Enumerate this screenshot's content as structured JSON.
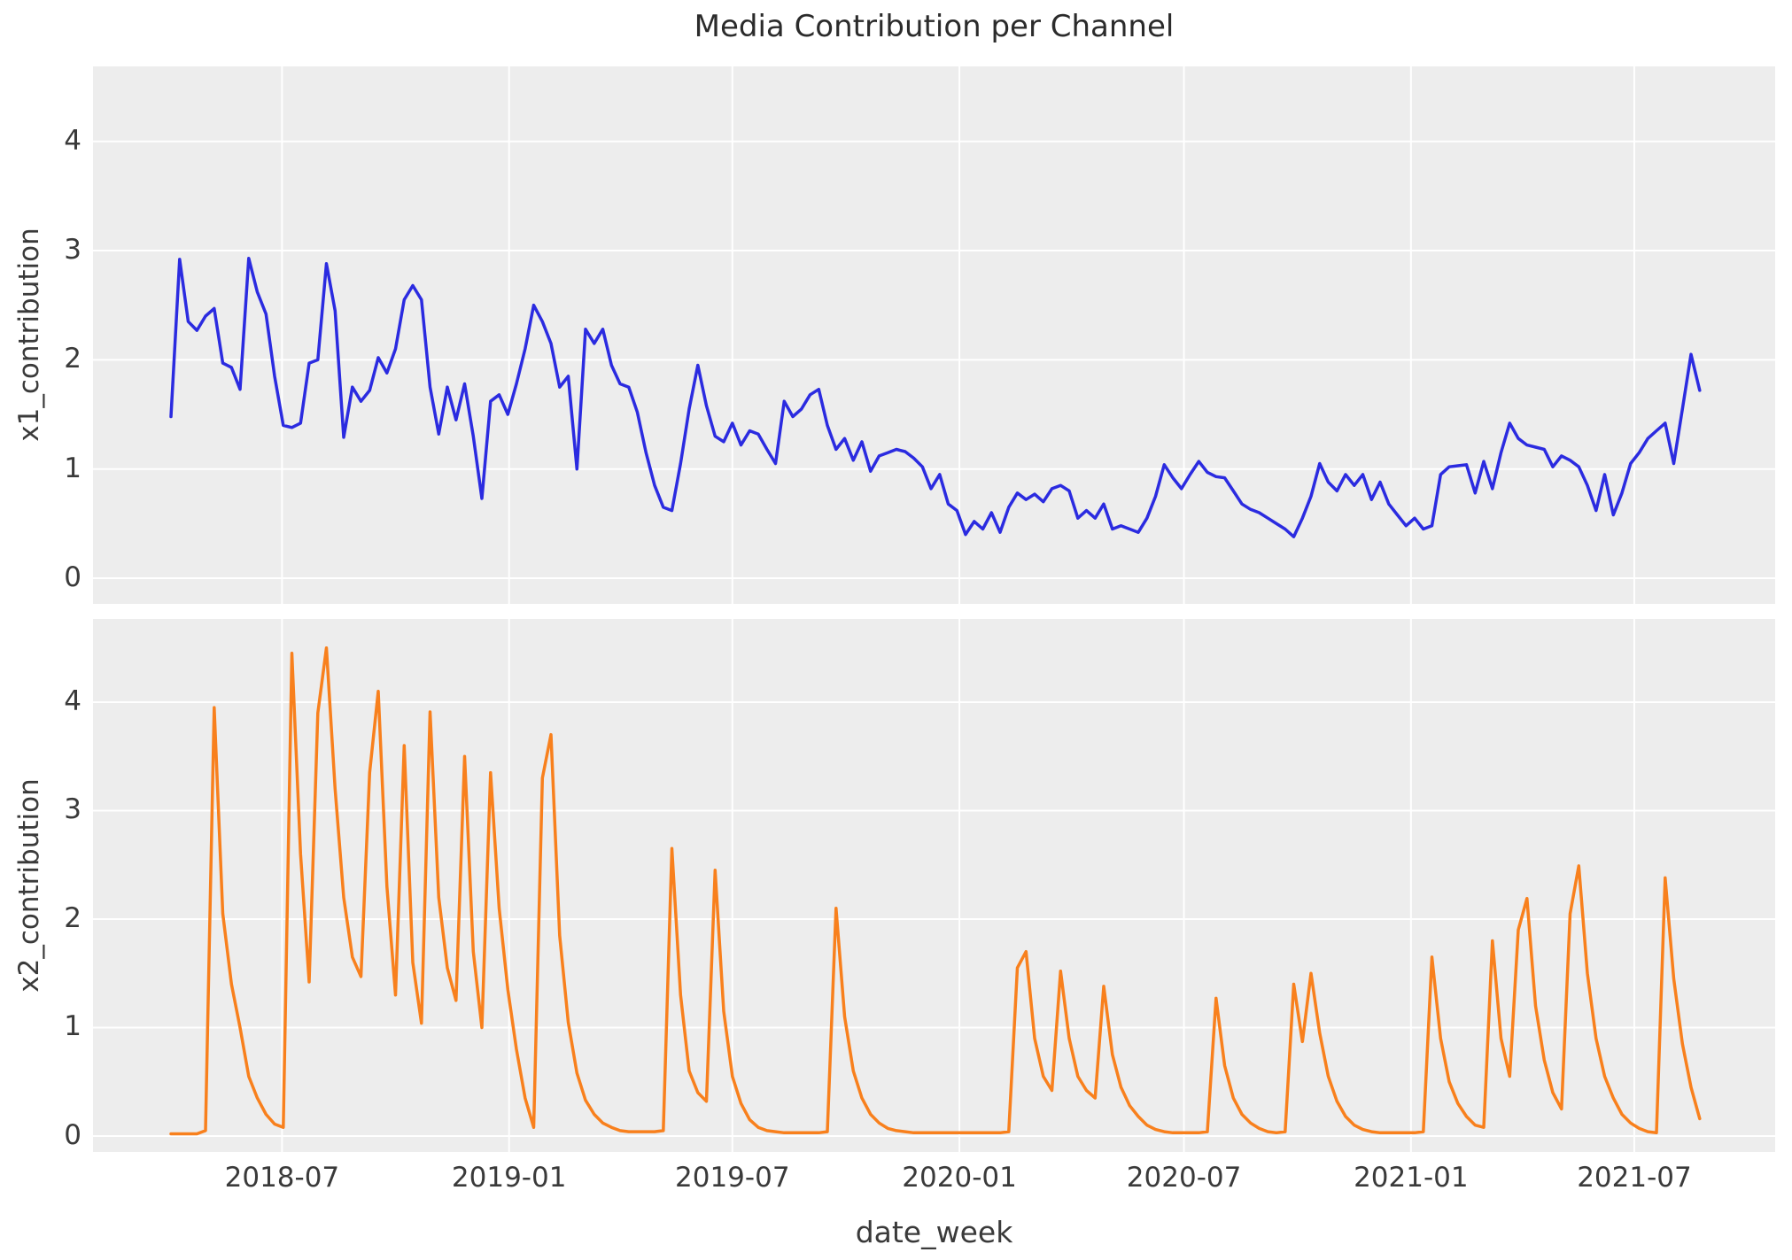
{
  "figure": {
    "title": "Media Contribution per Channel",
    "xlabel": "date_week",
    "background": "#ffffff",
    "panel_background": "#ededed",
    "grid_color": "#ffffff",
    "text_color": "#3a3a3a"
  },
  "x_axis": {
    "label": "date_week",
    "start_date": "2018-04-02",
    "frequency": "weekly",
    "n_points": 178,
    "domain_weeks": [
      -9.03,
      185.74
    ],
    "ticks": [
      {
        "week": 12.857,
        "label": "2018-07"
      },
      {
        "week": 39.143,
        "label": "2019-01"
      },
      {
        "week": 65.0,
        "label": "2019-07"
      },
      {
        "week": 91.286,
        "label": "2020-01"
      },
      {
        "week": 117.286,
        "label": "2020-07"
      },
      {
        "week": 143.571,
        "label": "2021-01"
      },
      {
        "week": 169.429,
        "label": "2021-07"
      }
    ]
  },
  "chart_data": [
    {
      "type": "line",
      "name": "x1_contribution",
      "ylabel": "x1_contribution",
      "color": "#2b2be0",
      "ylim": [
        -0.235,
        4.687
      ],
      "yticks": [
        0,
        1,
        2,
        3,
        4
      ],
      "ytick_labels": [
        "0",
        "1",
        "2",
        "3",
        "4"
      ],
      "grid": true,
      "values": [
        1.48,
        2.92,
        2.35,
        2.27,
        2.4,
        2.47,
        1.97,
        1.93,
        1.73,
        2.93,
        2.62,
        2.42,
        1.85,
        1.4,
        1.38,
        1.42,
        1.97,
        2.0,
        2.88,
        2.45,
        1.29,
        1.75,
        1.62,
        1.72,
        2.02,
        1.88,
        2.1,
        2.55,
        2.68,
        2.55,
        1.75,
        1.32,
        1.75,
        1.45,
        1.78,
        1.3,
        0.73,
        1.62,
        1.68,
        1.5,
        1.78,
        2.1,
        2.5,
        2.35,
        2.15,
        1.75,
        1.85,
        1.0,
        2.28,
        2.15,
        2.28,
        1.95,
        1.78,
        1.75,
        1.52,
        1.15,
        0.85,
        0.65,
        0.62,
        1.05,
        1.55,
        1.95,
        1.58,
        1.3,
        1.25,
        1.42,
        1.22,
        1.35,
        1.32,
        1.18,
        1.05,
        1.62,
        1.48,
        1.55,
        1.68,
        1.73,
        1.4,
        1.18,
        1.28,
        1.08,
        1.25,
        0.98,
        1.12,
        1.15,
        1.18,
        1.16,
        1.1,
        1.02,
        0.82,
        0.95,
        0.68,
        0.62,
        0.4,
        0.52,
        0.45,
        0.6,
        0.42,
        0.65,
        0.78,
        0.72,
        0.77,
        0.7,
        0.82,
        0.85,
        0.8,
        0.55,
        0.62,
        0.55,
        0.68,
        0.45,
        0.48,
        0.45,
        0.42,
        0.55,
        0.75,
        1.04,
        0.92,
        0.82,
        0.95,
        1.07,
        0.97,
        0.93,
        0.92,
        0.8,
        0.68,
        0.63,
        0.6,
        0.55,
        0.5,
        0.45,
        0.38,
        0.55,
        0.75,
        1.05,
        0.88,
        0.8,
        0.95,
        0.85,
        0.95,
        0.72,
        0.88,
        0.68,
        0.58,
        0.48,
        0.55,
        0.45,
        0.48,
        0.95,
        1.02,
        1.03,
        1.04,
        0.78,
        1.07,
        0.82,
        1.15,
        1.42,
        1.28,
        1.22,
        1.2,
        1.18,
        1.02,
        1.12,
        1.08,
        1.02,
        0.85,
        0.62,
        0.95,
        0.58,
        0.78,
        1.05,
        1.15,
        1.28,
        1.35,
        1.42,
        1.05,
        1.55,
        2.05,
        1.72
      ]
    },
    {
      "type": "line",
      "name": "x2_contribution",
      "ylabel": "x2_contribution",
      "color": "#f8801d",
      "ylim": [
        -0.147,
        4.767
      ],
      "yticks": [
        0,
        1,
        2,
        3,
        4
      ],
      "ytick_labels": [
        "0",
        "1",
        "2",
        "3",
        "4"
      ],
      "grid": true,
      "values": [
        0.02,
        0.02,
        0.02,
        0.02,
        0.05,
        3.95,
        2.05,
        1.4,
        1.0,
        0.55,
        0.35,
        0.2,
        0.11,
        0.08,
        4.45,
        2.6,
        1.42,
        3.9,
        4.5,
        3.2,
        2.2,
        1.65,
        1.47,
        3.35,
        4.1,
        2.3,
        1.3,
        3.6,
        1.6,
        1.04,
        3.91,
        2.2,
        1.55,
        1.25,
        3.5,
        1.7,
        1.0,
        3.35,
        2.1,
        1.35,
        0.8,
        0.35,
        0.08,
        3.3,
        3.7,
        1.85,
        1.05,
        0.58,
        0.33,
        0.2,
        0.12,
        0.08,
        0.05,
        0.04,
        0.04,
        0.04,
        0.04,
        0.05,
        2.65,
        1.3,
        0.6,
        0.4,
        0.32,
        2.45,
        1.15,
        0.55,
        0.3,
        0.15,
        0.08,
        0.05,
        0.04,
        0.03,
        0.03,
        0.03,
        0.03,
        0.03,
        0.04,
        2.1,
        1.1,
        0.6,
        0.35,
        0.2,
        0.12,
        0.07,
        0.05,
        0.04,
        0.03,
        0.03,
        0.03,
        0.03,
        0.03,
        0.03,
        0.03,
        0.03,
        0.03,
        0.03,
        0.03,
        0.04,
        1.55,
        1.7,
        0.9,
        0.55,
        0.42,
        1.52,
        0.9,
        0.55,
        0.42,
        0.35,
        1.38,
        0.75,
        0.45,
        0.28,
        0.18,
        0.1,
        0.06,
        0.04,
        0.03,
        0.03,
        0.03,
        0.03,
        0.04,
        1.27,
        0.65,
        0.35,
        0.2,
        0.12,
        0.07,
        0.04,
        0.03,
        0.04,
        1.4,
        0.87,
        1.5,
        0.95,
        0.55,
        0.32,
        0.18,
        0.1,
        0.06,
        0.04,
        0.03,
        0.03,
        0.03,
        0.03,
        0.03,
        0.04,
        1.65,
        0.9,
        0.5,
        0.3,
        0.18,
        0.1,
        0.08,
        1.8,
        0.9,
        0.55,
        1.9,
        2.19,
        1.2,
        0.7,
        0.4,
        0.25,
        2.05,
        2.49,
        1.5,
        0.9,
        0.55,
        0.35,
        0.2,
        0.12,
        0.07,
        0.04,
        0.03,
        2.38,
        1.45,
        0.85,
        0.45,
        0.16
      ]
    }
  ]
}
